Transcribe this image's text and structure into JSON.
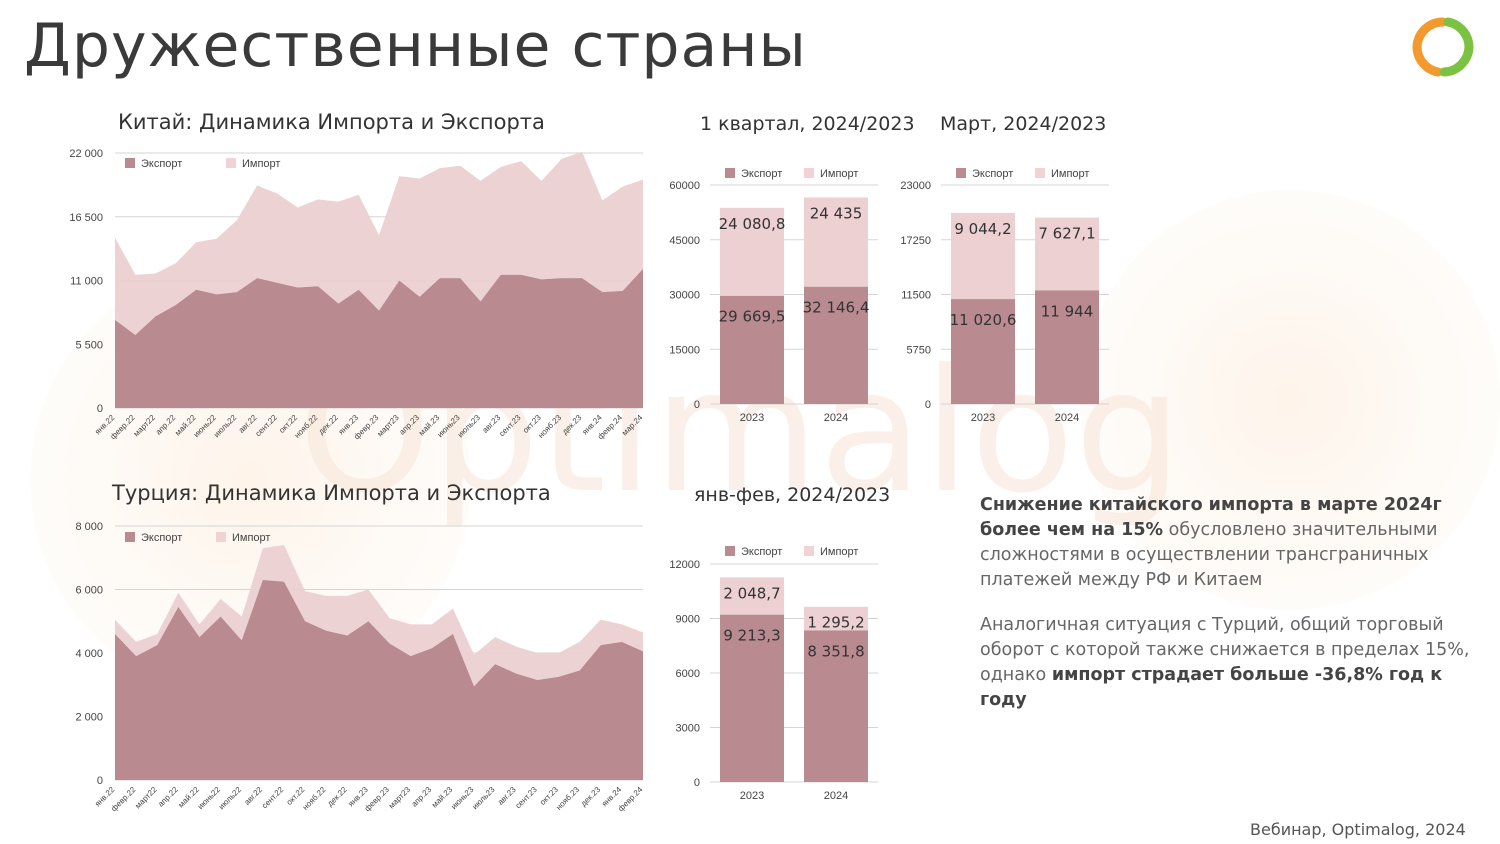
{
  "title": "Дружественные страны",
  "footer": "Вебинар, Optimalog, 2024",
  "watermark": "Optimalog",
  "colors": {
    "export": "#b98a8f",
    "import": "#ecd0d2",
    "legend_export": "#b98a8f",
    "legend_import": "#f1d3d5",
    "accent_orange": "#f29a2e",
    "accent_green": "#7cc242"
  },
  "legend": {
    "export": "Экспорт",
    "import": "Импорт"
  },
  "notes": {
    "p1": {
      "bold": "Снижение китайского импорта в марте 2024г более чем на 15%",
      "rest": " обусловлено значительными сложностями в осуществлении трансграничных платежей между РФ и Китаем"
    },
    "p2": {
      "rest": "Аналогичная ситуация с Турций, общий торговый оборот с которой также снижается в пределах 15%, однако ",
      "bold": "импорт страдает больше -36,8% год к году"
    }
  },
  "chart_data": [
    {
      "id": "china",
      "type": "area",
      "stacked": true,
      "title": "Китай: Динамика Импорта и Экспорта",
      "y_ticks": [
        "0",
        "5 500",
        "11 000",
        "16 500",
        "22 000"
      ],
      "ylim": [
        0,
        22000
      ],
      "x": [
        "янв.22",
        "февр.22",
        "март22",
        "апр.22",
        "май.22",
        "июнь22",
        "июль22",
        "авг.22",
        "сент.22",
        "окт.22",
        "нояб.22",
        "дек.22",
        "янв.23",
        "февр.23",
        "март23",
        "апр.23",
        "май.23",
        "июнь23",
        "июль23",
        "авг.23",
        "сент.23",
        "окт.23",
        "нояб.23",
        "дек.23",
        "янв.24",
        "февр.24",
        "мар.24"
      ],
      "series": [
        {
          "name": "Экспорт",
          "values": [
            7600,
            6300,
            7900,
            8900,
            10200,
            9800,
            10000,
            11200,
            10800,
            10400,
            10500,
            9000,
            10200,
            8400,
            11000,
            9600,
            11200,
            11200,
            9200,
            11500,
            11500,
            11100,
            11200,
            11200,
            10000,
            10100,
            12000
          ]
        },
        {
          "name": "Импорт",
          "values": [
            7100,
            5200,
            3700,
            3600,
            4100,
            4800,
            6200,
            8000,
            7700,
            6900,
            7500,
            8800,
            8200,
            6500,
            9000,
            10200,
            9500,
            9700,
            10400,
            9300,
            9800,
            8500,
            10300,
            10900,
            7900,
            9000,
            7700
          ]
        }
      ]
    },
    {
      "id": "q1",
      "type": "bar",
      "stacked": true,
      "title": "1 квартал, 2024/2023",
      "categories": [
        "2023",
        "2024"
      ],
      "y_ticks": [
        "0",
        "15000",
        "30000",
        "45000",
        "60000"
      ],
      "ylim": [
        0,
        60000
      ],
      "series": [
        {
          "name": "Экспорт",
          "values": [
            29669.5,
            32146.4
          ],
          "labels": [
            "29 669,5",
            "32 146,4"
          ]
        },
        {
          "name": "Импорт",
          "values": [
            24080.8,
            24435
          ],
          "labels": [
            "24 080,8",
            "24 435"
          ]
        }
      ]
    },
    {
      "id": "mar",
      "type": "bar",
      "stacked": true,
      "title": "Март, 2024/2023",
      "categories": [
        "2023",
        "2024"
      ],
      "y_ticks": [
        "0",
        "5750",
        "11500",
        "17250",
        "23000"
      ],
      "ylim": [
        0,
        23000
      ],
      "series": [
        {
          "name": "Экспорт",
          "values": [
            11020.6,
            11944
          ],
          "labels": [
            "11 020,6",
            "11 944"
          ]
        },
        {
          "name": "Импорт",
          "values": [
            9044.2,
            7627.1
          ],
          "labels": [
            "9 044,2",
            "7 627,1"
          ]
        }
      ]
    },
    {
      "id": "turkey",
      "type": "area",
      "stacked": true,
      "title": "Турция: Динамика Импорта и Экспорта",
      "y_ticks": [
        "0",
        "2 000",
        "4 000",
        "6 000",
        "8 000"
      ],
      "ylim": [
        0,
        8000
      ],
      "x": [
        "янв.22",
        "февр.22",
        "март22",
        "апр.22",
        "май.22",
        "июнь22",
        "июль22",
        "авг.22",
        "сент.22",
        "окт.22",
        "нояб.22",
        "дек.22",
        "янв.23",
        "февр.23",
        "март23",
        "апр.23",
        "май.23",
        "июнь23",
        "июль23",
        "авг.23",
        "сент.23",
        "окт.23",
        "нояб.23",
        "дек.23",
        "янв.24",
        "февр.24"
      ],
      "series": [
        {
          "name": "Экспорт",
          "values": [
            4600,
            3900,
            4250,
            5450,
            4500,
            5150,
            4400,
            6300,
            6250,
            5000,
            4700,
            4550,
            5000,
            4300,
            3900,
            4150,
            4600,
            2950,
            3650,
            3350,
            3150,
            3250,
            3450,
            4250,
            4350,
            4050
          ]
        },
        {
          "name": "Импорт",
          "values": [
            450,
            450,
            350,
            450,
            400,
            550,
            750,
            1000,
            1150,
            950,
            1100,
            1250,
            1000,
            800,
            1000,
            750,
            800,
            1000,
            850,
            850,
            850,
            750,
            900,
            800,
            550,
            600
          ]
        }
      ]
    },
    {
      "id": "janfeb",
      "type": "bar",
      "stacked": true,
      "title": "янв-фев, 2024/2023",
      "categories": [
        "2023",
        "2024"
      ],
      "y_ticks": [
        "0",
        "3000",
        "6000",
        "9000",
        "12000"
      ],
      "ylim": [
        0,
        12000
      ],
      "series": [
        {
          "name": "Экспорт",
          "values": [
            9213.3,
            8351.8
          ],
          "labels": [
            "9 213,3",
            "8 351,8"
          ]
        },
        {
          "name": "Импорт",
          "values": [
            2048.7,
            1295.2
          ],
          "labels": [
            "2 048,7",
            "1 295,2"
          ]
        }
      ]
    }
  ]
}
